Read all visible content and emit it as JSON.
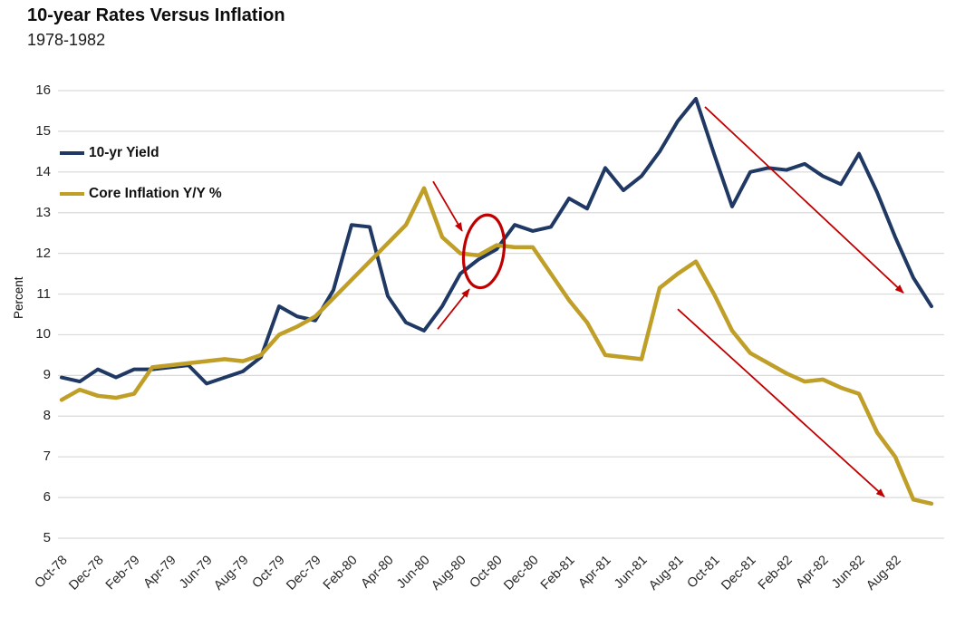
{
  "header": {
    "title": "10-year Rates Versus Inflation",
    "subtitle": "1978-1982"
  },
  "y_axis": {
    "title": "Percent",
    "ticks": [
      16,
      15,
      14,
      13,
      12,
      11,
      10,
      9,
      8,
      7,
      6,
      5
    ]
  },
  "colors": {
    "background": "#FFFFFF",
    "grid": "#D9D9D9",
    "title_text": "#0D0D0D",
    "tick_text": "#262626",
    "annotation_red": "#C00000",
    "yield_navy": "#1F3864",
    "inflation_gold": "#C09F28"
  },
  "chart_data": {
    "type": "line",
    "title": "10-year Rates Versus Inflation",
    "subtitle": "1978-1982",
    "ylabel": "Percent",
    "ylim": [
      5,
      16
    ],
    "grid": "horizontal",
    "legend_position": "inside-top-left",
    "x": [
      "Oct-78",
      "Nov-78",
      "Dec-78",
      "Jan-79",
      "Feb-79",
      "Mar-79",
      "Apr-79",
      "May-79",
      "Jun-79",
      "Jul-79",
      "Aug-79",
      "Sep-79",
      "Oct-79",
      "Nov-79",
      "Dec-79",
      "Jan-80",
      "Feb-80",
      "Mar-80",
      "Apr-80",
      "May-80",
      "Jun-80",
      "Jul-80",
      "Aug-80",
      "Sep-80",
      "Oct-80",
      "Nov-80",
      "Dec-80",
      "Jan-81",
      "Feb-81",
      "Mar-81",
      "Apr-81",
      "May-81",
      "Jun-81",
      "Jul-81",
      "Aug-81",
      "Sep-81",
      "Oct-81",
      "Nov-81",
      "Dec-81",
      "Jan-82",
      "Feb-82",
      "Mar-82",
      "Apr-82",
      "May-82",
      "Jun-82",
      "Jul-82",
      "Aug-82",
      "Sep-82",
      "Oct-82"
    ],
    "x_tick_labels": [
      "Oct-78",
      "Dec-78",
      "Feb-79",
      "Apr-79",
      "Jun-79",
      "Aug-79",
      "Oct-79",
      "Dec-79",
      "Feb-80",
      "Apr-80",
      "Jun-80",
      "Aug-80",
      "Oct-80",
      "Dec-80",
      "Feb-81",
      "Apr-81",
      "Jun-81",
      "Aug-81",
      "Oct-81",
      "Dec-81",
      "Feb-82",
      "Apr-82",
      "Jun-82",
      "Aug-82"
    ],
    "series": [
      {
        "name": "10-yr Yield",
        "color": "#1F3864",
        "values": [
          8.95,
          8.85,
          9.15,
          8.95,
          9.15,
          9.15,
          9.2,
          9.25,
          8.8,
          8.95,
          9.1,
          9.45,
          10.7,
          10.45,
          10.35,
          11.1,
          12.7,
          12.65,
          10.95,
          10.3,
          10.1,
          10.7,
          11.5,
          11.85,
          12.1,
          12.7,
          12.55,
          12.65,
          13.35,
          13.1,
          14.1,
          13.55,
          13.9,
          14.5,
          15.25,
          15.8,
          14.45,
          13.15,
          14.0,
          14.1,
          14.05,
          14.2,
          13.9,
          13.7,
          14.45,
          13.5,
          12.4,
          11.4,
          10.7
        ]
      },
      {
        "name": "Core Inflation Y/Y %",
        "color": "#C09F28",
        "values": [
          8.4,
          8.65,
          8.5,
          8.45,
          8.55,
          9.2,
          9.25,
          9.3,
          9.35,
          9.4,
          9.35,
          9.5,
          10.0,
          10.2,
          10.45,
          10.9,
          11.35,
          11.8,
          12.25,
          12.7,
          13.6,
          12.4,
          12.0,
          11.95,
          12.2,
          12.15,
          12.15,
          11.5,
          10.85,
          10.3,
          9.5,
          9.45,
          9.4,
          11.15,
          11.5,
          11.8,
          11.0,
          10.1,
          9.55,
          9.3,
          9.05,
          8.85,
          8.9,
          8.7,
          8.55,
          7.6,
          7.0,
          5.95,
          5.85
        ]
      }
    ],
    "annotations": {
      "color": "#C00000",
      "ellipse": {
        "month": 23.3,
        "value": 12.05,
        "rx_months": 1.1,
        "ry_units": 0.9,
        "rotate_deg": 8
      },
      "arrows": [
        {
          "from_month": 20.5,
          "from_value": 13.77,
          "to_month": 22.1,
          "to_value": 12.55
        },
        {
          "from_month": 20.75,
          "from_value": 10.14,
          "to_month": 22.5,
          "to_value": 11.12
        },
        {
          "from_month": 35.5,
          "from_value": 15.6,
          "to_month": 46.45,
          "to_value": 11.03
        },
        {
          "from_month": 34.0,
          "from_value": 10.63,
          "to_month": 45.4,
          "to_value": 6.02
        }
      ]
    }
  }
}
